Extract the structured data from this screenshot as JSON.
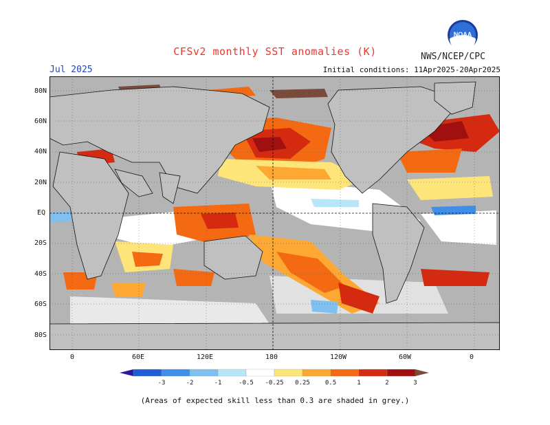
{
  "title": "CFSv2 monthly SST anomalies (K)",
  "agency": "NWS/NCEP/CPC",
  "logo_text": "NOAA",
  "month": "Jul 2025",
  "initial_conditions": "Initial conditions: 11Apr2025-20Apr2025",
  "footer": "(Areas of expected skill less than 0.3 are shaded in grey.)",
  "lat_labels": [
    "80N",
    "60N",
    "40N",
    "20N",
    "EQ",
    "20S",
    "40S",
    "60S",
    "80S"
  ],
  "lon_labels": [
    "0",
    "60E",
    "120E",
    "180",
    "120W",
    "60W",
    "0"
  ],
  "colorbar": {
    "labels": [
      "-3",
      "-2",
      "-1",
      "-0.5",
      "-0.25",
      "0.25",
      "0.5",
      "1",
      "2",
      "3"
    ],
    "colors": [
      "#2a1b9a",
      "#1f5fd6",
      "#3f8ee8",
      "#7fc0f0",
      "#b8e6f8",
      "#ffffff",
      "#fde57a",
      "#fca832",
      "#f46a12",
      "#d62a10",
      "#a01010",
      "#7a4a3a"
    ]
  },
  "colors": {
    "land": "#c0c0c0",
    "ocean_neutral": "#ffffff",
    "low_skill": "#b4b4b4",
    "title_red": "#e8382e",
    "month_blue": "#1f3fd0"
  }
}
